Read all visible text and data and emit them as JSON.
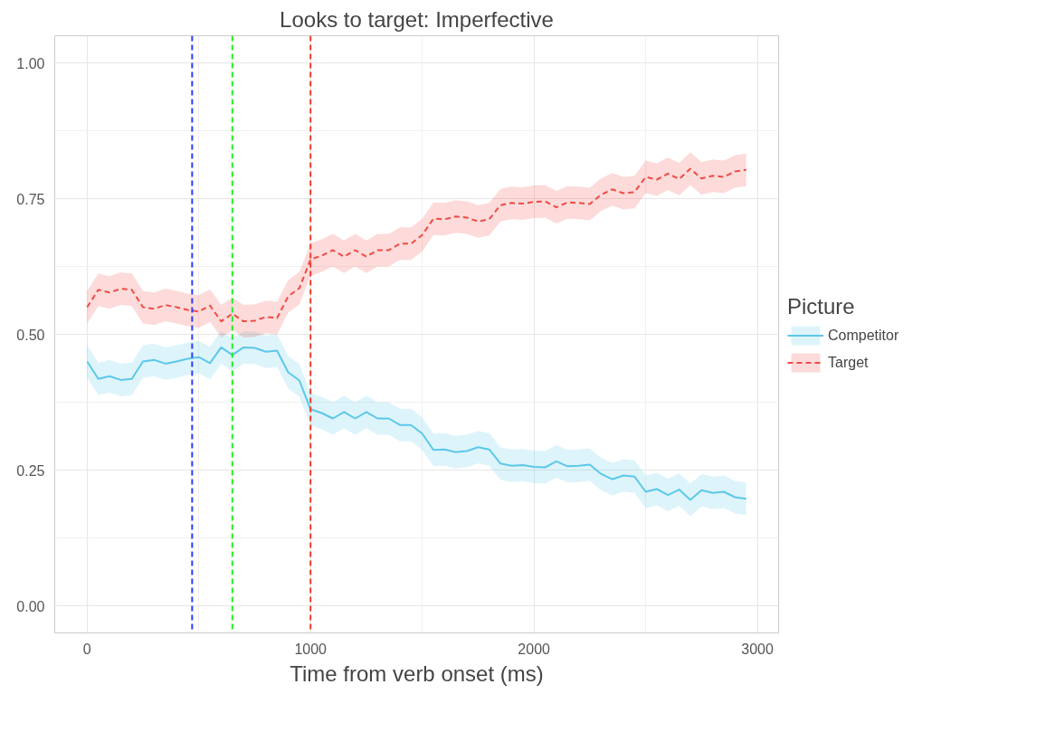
{
  "chart_data": {
    "type": "line",
    "title": "Looks to target: Imperfective",
    "xlabel": "Time from verb onset (ms)",
    "legend_title": "Picture",
    "x": [
      0,
      50,
      100,
      150,
      200,
      250,
      300,
      350,
      400,
      450,
      500,
      550,
      600,
      650,
      700,
      750,
      800,
      850,
      900,
      950,
      1000,
      1050,
      1100,
      1150,
      1200,
      1250,
      1300,
      1350,
      1400,
      1450,
      1500,
      1550,
      1600,
      1650,
      1700,
      1750,
      1800,
      1850,
      1900,
      1950,
      2000,
      2050,
      2100,
      2150,
      2200,
      2250,
      2300,
      2350,
      2400,
      2450,
      2500,
      2550,
      2600,
      2650,
      2700,
      2750,
      2800,
      2850,
      2900,
      2950
    ],
    "series": [
      {
        "name": "Competitor",
        "color": "#5bc8ea",
        "line_style": "solid",
        "values": [
          0.45,
          0.418,
          0.423,
          0.416,
          0.418,
          0.45,
          0.453,
          0.446,
          0.45,
          0.455,
          0.458,
          0.447,
          0.476,
          0.462,
          0.476,
          0.475,
          0.468,
          0.47,
          0.43,
          0.415,
          0.362,
          0.355,
          0.345,
          0.357,
          0.345,
          0.357,
          0.345,
          0.345,
          0.333,
          0.333,
          0.317,
          0.287,
          0.288,
          0.283,
          0.285,
          0.292,
          0.288,
          0.262,
          0.258,
          0.259,
          0.256,
          0.255,
          0.266,
          0.257,
          0.258,
          0.26,
          0.243,
          0.233,
          0.24,
          0.238,
          0.21,
          0.215,
          0.204,
          0.214,
          0.195,
          0.213,
          0.208,
          0.21,
          0.2,
          0.197
        ],
        "lower": [
          0.42,
          0.388,
          0.393,
          0.386,
          0.388,
          0.42,
          0.423,
          0.416,
          0.42,
          0.425,
          0.428,
          0.417,
          0.446,
          0.432,
          0.446,
          0.445,
          0.438,
          0.44,
          0.4,
          0.385,
          0.332,
          0.325,
          0.315,
          0.327,
          0.315,
          0.327,
          0.315,
          0.315,
          0.303,
          0.303,
          0.287,
          0.257,
          0.258,
          0.253,
          0.255,
          0.262,
          0.258,
          0.232,
          0.228,
          0.229,
          0.226,
          0.225,
          0.236,
          0.227,
          0.228,
          0.23,
          0.213,
          0.203,
          0.21,
          0.208,
          0.18,
          0.185,
          0.174,
          0.184,
          0.165,
          0.183,
          0.178,
          0.18,
          0.17,
          0.167
        ],
        "upper": [
          0.48,
          0.448,
          0.453,
          0.446,
          0.448,
          0.48,
          0.483,
          0.476,
          0.48,
          0.485,
          0.488,
          0.477,
          0.506,
          0.492,
          0.506,
          0.505,
          0.498,
          0.5,
          0.46,
          0.445,
          0.392,
          0.385,
          0.375,
          0.387,
          0.375,
          0.387,
          0.375,
          0.375,
          0.363,
          0.363,
          0.347,
          0.317,
          0.318,
          0.313,
          0.315,
          0.322,
          0.318,
          0.292,
          0.288,
          0.289,
          0.286,
          0.285,
          0.296,
          0.287,
          0.288,
          0.29,
          0.273,
          0.263,
          0.27,
          0.268,
          0.24,
          0.245,
          0.234,
          0.244,
          0.225,
          0.243,
          0.238,
          0.24,
          0.23,
          0.227
        ]
      },
      {
        "name": "Target",
        "color": "#ef4b45",
        "line_style": "dashed",
        "values": [
          0.55,
          0.582,
          0.577,
          0.584,
          0.582,
          0.55,
          0.547,
          0.554,
          0.55,
          0.545,
          0.542,
          0.553,
          0.524,
          0.538,
          0.524,
          0.525,
          0.532,
          0.53,
          0.57,
          0.585,
          0.638,
          0.645,
          0.655,
          0.643,
          0.655,
          0.643,
          0.655,
          0.655,
          0.667,
          0.667,
          0.683,
          0.713,
          0.712,
          0.717,
          0.715,
          0.708,
          0.712,
          0.738,
          0.742,
          0.741,
          0.744,
          0.745,
          0.734,
          0.743,
          0.742,
          0.74,
          0.757,
          0.767,
          0.76,
          0.762,
          0.79,
          0.785,
          0.796,
          0.786,
          0.805,
          0.787,
          0.792,
          0.79,
          0.8,
          0.803
        ],
        "lower": [
          0.52,
          0.552,
          0.547,
          0.554,
          0.552,
          0.52,
          0.517,
          0.524,
          0.52,
          0.515,
          0.512,
          0.523,
          0.494,
          0.508,
          0.494,
          0.495,
          0.502,
          0.5,
          0.54,
          0.555,
          0.608,
          0.615,
          0.625,
          0.613,
          0.625,
          0.613,
          0.625,
          0.625,
          0.637,
          0.637,
          0.653,
          0.683,
          0.682,
          0.687,
          0.685,
          0.678,
          0.682,
          0.708,
          0.712,
          0.711,
          0.714,
          0.715,
          0.704,
          0.713,
          0.712,
          0.71,
          0.727,
          0.737,
          0.73,
          0.732,
          0.76,
          0.755,
          0.766,
          0.756,
          0.775,
          0.757,
          0.762,
          0.76,
          0.77,
          0.773
        ],
        "upper": [
          0.58,
          0.612,
          0.607,
          0.614,
          0.612,
          0.58,
          0.577,
          0.584,
          0.58,
          0.575,
          0.572,
          0.583,
          0.554,
          0.568,
          0.554,
          0.555,
          0.562,
          0.56,
          0.6,
          0.615,
          0.668,
          0.675,
          0.685,
          0.673,
          0.685,
          0.673,
          0.685,
          0.685,
          0.697,
          0.697,
          0.713,
          0.743,
          0.742,
          0.747,
          0.745,
          0.738,
          0.742,
          0.768,
          0.772,
          0.771,
          0.774,
          0.775,
          0.764,
          0.773,
          0.772,
          0.77,
          0.787,
          0.797,
          0.79,
          0.792,
          0.82,
          0.815,
          0.826,
          0.816,
          0.835,
          0.817,
          0.822,
          0.82,
          0.83,
          0.833
        ]
      }
    ],
    "ref_lines": [
      {
        "axis": "x",
        "value": 470,
        "color": "#2b3bff",
        "line_style": "dashed"
      },
      {
        "axis": "x",
        "value": 650,
        "color": "#22ee22",
        "line_style": "dashed"
      },
      {
        "axis": "x",
        "value": 1000,
        "color": "#ee3b2b",
        "line_style": "dashed"
      }
    ],
    "xlim": [
      -145,
      3095
    ],
    "ylim": [
      -0.05,
      1.05
    ],
    "xticks": [
      0,
      1000,
      2000,
      3000
    ],
    "yticks": [
      {
        "value": 0,
        "label": "0.00"
      },
      {
        "value": 0.25,
        "label": "0.25"
      },
      {
        "value": 0.5,
        "label": "0.50"
      },
      {
        "value": 0.75,
        "label": "0.75"
      },
      {
        "value": 1,
        "label": "1.00"
      }
    ],
    "grid": true,
    "legend": "right",
    "marker": "none"
  }
}
